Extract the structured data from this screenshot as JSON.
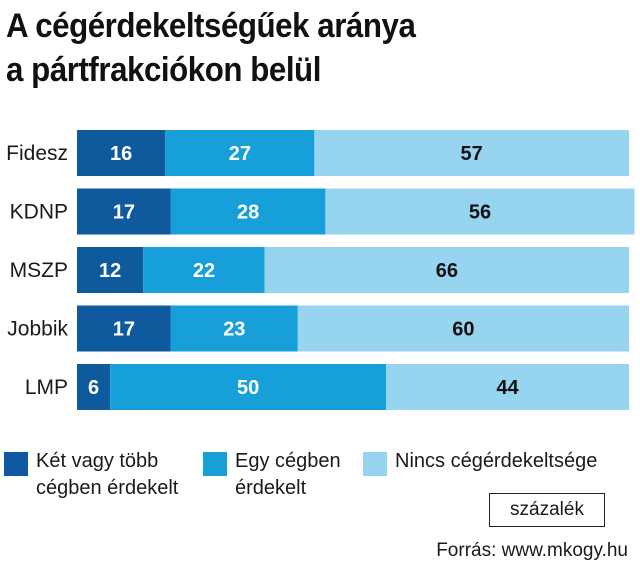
{
  "chart_data": {
    "type": "bar",
    "orientation": "horizontal",
    "stacked": true,
    "title": "A cégérdekeltségűek aránya a pártfrakciókon belül",
    "title_lines": [
      "A cégérdekeltségűek aránya",
      "a pártfrakciókon belül"
    ],
    "categories": [
      "Fidesz",
      "KDNP",
      "MSZP",
      "Jobbik",
      "LMP"
    ],
    "series": [
      {
        "name": "Két vagy több cégben érdekelt",
        "legend_text": "Két vagy több\ncégben érdekelt",
        "color": "#0f5a9c",
        "text_color": "#ffffff",
        "values": [
          16,
          17,
          12,
          17,
          6
        ]
      },
      {
        "name": "Egy cégben érdekelt",
        "legend_text": "Egy cégben\nérdekelt",
        "color": "#179fd9",
        "text_color": "#ffffff",
        "values": [
          27,
          28,
          22,
          23,
          50
        ]
      },
      {
        "name": "Nincs cégérdekeltsége",
        "legend_text": "Nincs cégérdekeltsége",
        "color": "#96d4f0",
        "text_color": "#111111",
        "values": [
          57,
          56,
          66,
          60,
          44
        ]
      }
    ],
    "xlim": [
      0,
      100
    ],
    "unit": "százalék",
    "grid": false,
    "legend_position": "bottom",
    "source": "Forrás: www.mkogy.hu"
  }
}
